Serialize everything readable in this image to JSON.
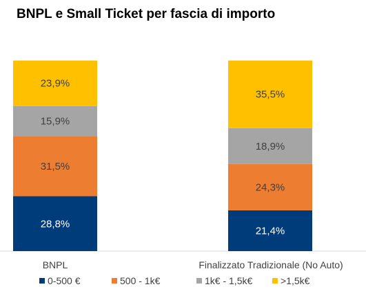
{
  "chart_data": {
    "type": "bar",
    "stacked": true,
    "title": "BNPL e Small Ticket per fascia di importo",
    "categories": [
      "BNPL",
      "Finalizzato Tradizionale (No Auto)"
    ],
    "series": [
      {
        "name": "0-500 €",
        "values": [
          28.8,
          21.4
        ],
        "labels": [
          "28,8%",
          "21,4%"
        ],
        "color": "#003B7A",
        "text_color": "#FFFFFF"
      },
      {
        "name": "500 - 1k€",
        "values": [
          31.5,
          24.3
        ],
        "labels": [
          "31,5%",
          "24,3%"
        ],
        "color": "#ED7D31",
        "text_color": "#404040"
      },
      {
        "name": "1k€ - 1,5k€",
        "values": [
          15.9,
          18.9
        ],
        "labels": [
          "15,9%",
          "18,9%"
        ],
        "color": "#A5A5A5",
        "text_color": "#404040"
      },
      {
        "name": ">1,5k€",
        "values": [
          23.9,
          35.5
        ],
        "labels": [
          "23,9%",
          "35,5%"
        ],
        "color": "#FFC000",
        "text_color": "#404040"
      }
    ],
    "ylim": [
      0,
      100
    ],
    "grid": false,
    "legend_position": "bottom"
  }
}
